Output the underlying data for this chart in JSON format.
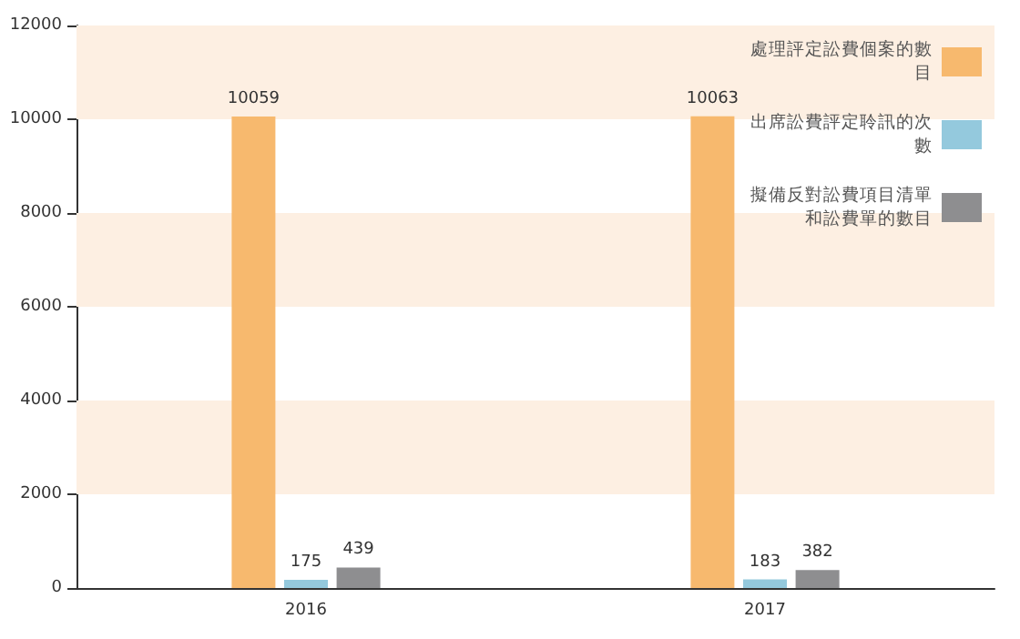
{
  "chart_data": {
    "type": "bar",
    "categories": [
      "2016",
      "2017"
    ],
    "series": [
      {
        "name": "處理評定訟費個案的數目",
        "color": "#f7b96e",
        "values": [
          10059,
          10063
        ]
      },
      {
        "name": "出席訟費評定聆訊的次數",
        "color": "#94c9dd",
        "values": [
          175,
          183
        ]
      },
      {
        "name": "擬備反對訟費項目清單和訟費單的數目",
        "color": "#8e8e90",
        "values": [
          439,
          382
        ]
      }
    ],
    "ylim": [
      0,
      12000
    ],
    "yticks": [
      0,
      2000,
      4000,
      6000,
      8000,
      10000,
      12000
    ],
    "bands": [
      {
        "axis": "y",
        "from": 2000,
        "to": 4000,
        "color": "#fdefe2"
      },
      {
        "axis": "y",
        "from": 6000,
        "to": 8000,
        "color": "#fdefe2"
      },
      {
        "axis": "y",
        "from": 10000,
        "to": 12000,
        "color": "#fdefe2"
      }
    ],
    "data_labels": true,
    "grid": false,
    "legend": "top right"
  }
}
